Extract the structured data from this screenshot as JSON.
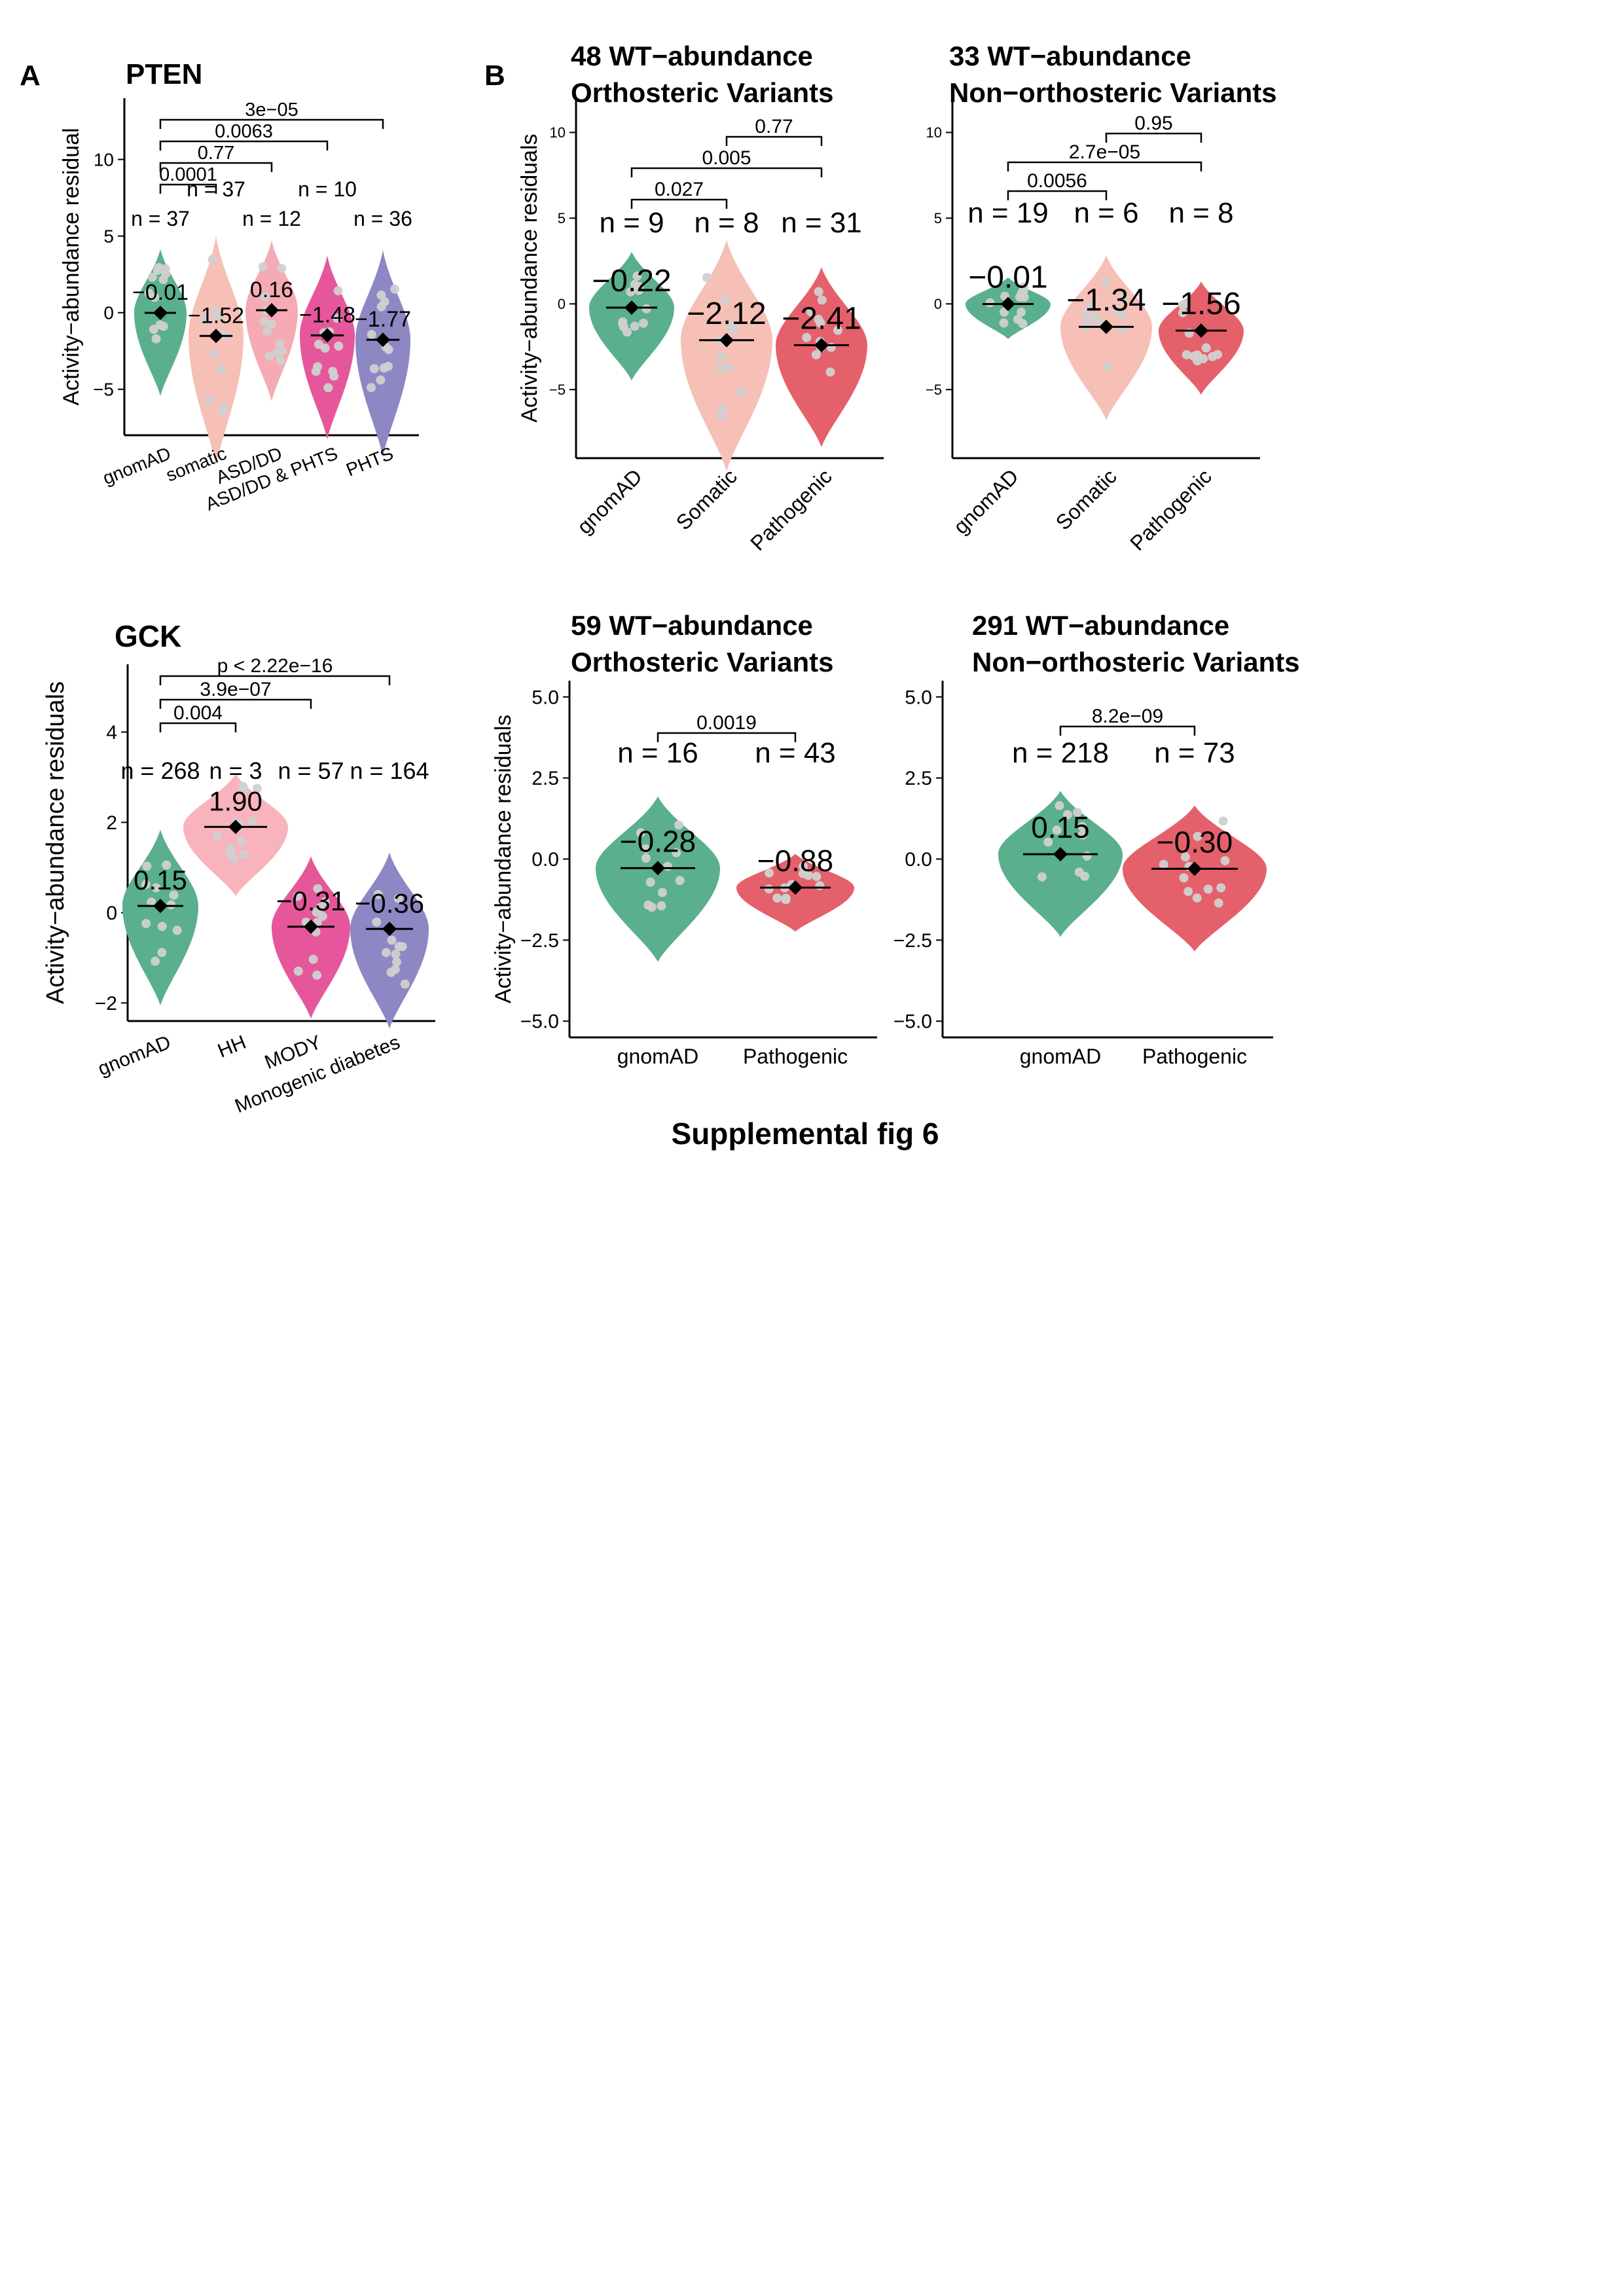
{
  "figure": {
    "caption": "Supplemental fig 6",
    "panel_labels": [
      "A",
      "B"
    ]
  },
  "colors": {
    "gnomAD": "#5aaf8c",
    "somatic": "#f6c0b7",
    "ASD/DD": "#f5aab4",
    "ASD/DD & PHTS": "#e5579a",
    "PHTS": "#8d87c4",
    "pathogenic": "#e4606b",
    "HH": "#f8b3bd",
    "MODY": "#e5579a",
    "monogenic": "#8d87c4",
    "point": "#d0d0d0"
  },
  "chart_data": [
    {
      "id": "pten",
      "type": "violin",
      "title": "PTEN",
      "ylabel": "Activity−abundance residual",
      "ylim": [
        -8,
        14
      ],
      "yticks": [
        "10",
        "5",
        "0",
        "−5"
      ],
      "categories": [
        "gnomAD",
        "somatic",
        "ASD/DD",
        "ASD/DD & PHTS",
        "PHTS"
      ],
      "n_labels": [
        "n = 37",
        "n = 37",
        "n = 12",
        "n = 10",
        "n = 36"
      ],
      "means": [
        -0.01,
        -1.52,
        0.16,
        -1.48,
        -1.77
      ],
      "mean_labels": [
        "−0.01",
        "−1.52",
        "0.16",
        "−1.48",
        "−1.77"
      ],
      "comparisons": [
        {
          "pair": [
            "gnomAD",
            "somatic"
          ],
          "p": "0.0001"
        },
        {
          "pair": [
            "gnomAD",
            "ASD/DD"
          ],
          "p": "0.77"
        },
        {
          "pair": [
            "gnomAD",
            "ASD/DD & PHTS"
          ],
          "p": "0.0063"
        },
        {
          "pair": [
            "gnomAD",
            "PHTS"
          ],
          "p": "3e−05"
        }
      ]
    },
    {
      "id": "b1",
      "type": "violin",
      "title": [
        "48 WT−abundance",
        "Orthosteric Variants"
      ],
      "ylabel": "Activity−abundance residuals",
      "ylim": [
        -9,
        12
      ],
      "yticks": [
        "10",
        "5",
        "0",
        "−5"
      ],
      "categories": [
        "gnomAD",
        "Somatic",
        "Pathogenic"
      ],
      "n_labels": [
        "n = 9",
        "n = 8",
        "n = 31"
      ],
      "means": [
        -0.22,
        -2.12,
        -2.41
      ],
      "mean_labels": [
        "−0.22",
        "−2.12",
        "−2.41"
      ],
      "comparisons": [
        {
          "pair": [
            "gnomAD",
            "Somatic"
          ],
          "p": "0.027"
        },
        {
          "pair": [
            "gnomAD",
            "Pathogenic"
          ],
          "p": "0.005"
        },
        {
          "pair": [
            "Somatic",
            "Pathogenic"
          ],
          "p": "0.77"
        }
      ]
    },
    {
      "id": "b2",
      "type": "violin",
      "title": [
        "33 WT−abundance",
        "Non−orthosteric Variants"
      ],
      "ylabel": "",
      "ylim": [
        -9,
        12
      ],
      "yticks": [
        "10",
        "5",
        "0",
        "−5"
      ],
      "categories": [
        "gnomAD",
        "Somatic",
        "Pathogenic"
      ],
      "n_labels": [
        "n = 19",
        "n = 6",
        "n = 8"
      ],
      "means": [
        -0.01,
        -1.34,
        -1.56
      ],
      "mean_labels": [
        "−0.01",
        "−1.34",
        "−1.56"
      ],
      "comparisons": [
        {
          "pair": [
            "gnomAD",
            "Somatic"
          ],
          "p": "0.0056"
        },
        {
          "pair": [
            "gnomAD",
            "Pathogenic"
          ],
          "p": "2.7e−05"
        },
        {
          "pair": [
            "Somatic",
            "Pathogenic"
          ],
          "p": "0.95"
        }
      ]
    },
    {
      "id": "gck",
      "type": "violin",
      "title": "GCK",
      "ylabel": "Activity−abundance residuals",
      "ylim": [
        -2.4,
        5.5
      ],
      "yticks": [
        "4",
        "2",
        "0",
        "−2"
      ],
      "categories": [
        "gnomAD",
        "HH",
        "MODY",
        "Monogenic diabetes"
      ],
      "n_labels": [
        "n = 268",
        "n = 3",
        "n = 57",
        "n = 164"
      ],
      "means": [
        0.15,
        1.9,
        -0.31,
        -0.36
      ],
      "mean_labels": [
        "0.15",
        "1.90",
        "−0.31",
        "−0.36"
      ],
      "comparisons": [
        {
          "pair": [
            "gnomAD",
            "HH"
          ],
          "p": "0.004"
        },
        {
          "pair": [
            "gnomAD",
            "MODY"
          ],
          "p": "3.9e−07"
        },
        {
          "pair": [
            "gnomAD",
            "Monogenic diabetes"
          ],
          "p": "p < 2.22e−16"
        }
      ]
    },
    {
      "id": "b3",
      "type": "violin",
      "title": [
        "59 WT−abundance",
        "Orthosteric Variants"
      ],
      "ylabel": "Activity−abundance residuals",
      "ylim": [
        -5.5,
        5.5
      ],
      "yticks": [
        "5.0",
        "2.5",
        "0.0",
        "−2.5",
        "−5.0"
      ],
      "categories": [
        "gnomAD",
        "Pathogenic"
      ],
      "n_labels": [
        "n = 16",
        "n = 43"
      ],
      "means": [
        -0.28,
        -0.88
      ],
      "mean_labels": [
        "−0.28",
        "−0.88"
      ],
      "comparisons": [
        {
          "pair": [
            "gnomAD",
            "Pathogenic"
          ],
          "p": "0.0019"
        }
      ]
    },
    {
      "id": "b4",
      "type": "violin",
      "title": [
        "291 WT−abundance",
        "Non−orthosteric Variants"
      ],
      "ylabel": "",
      "ylim": [
        -5.5,
        5.5
      ],
      "yticks": [
        "5.0",
        "2.5",
        "0.0",
        "−2.5",
        "−5.0"
      ],
      "categories": [
        "gnomAD",
        "Pathogenic"
      ],
      "n_labels": [
        "n = 218",
        "n = 73"
      ],
      "means": [
        0.15,
        -0.3
      ],
      "mean_labels": [
        "0.15",
        "−0.30"
      ],
      "comparisons": [
        {
          "pair": [
            "gnomAD",
            "Pathogenic"
          ],
          "p": "8.2e−09"
        }
      ]
    }
  ]
}
